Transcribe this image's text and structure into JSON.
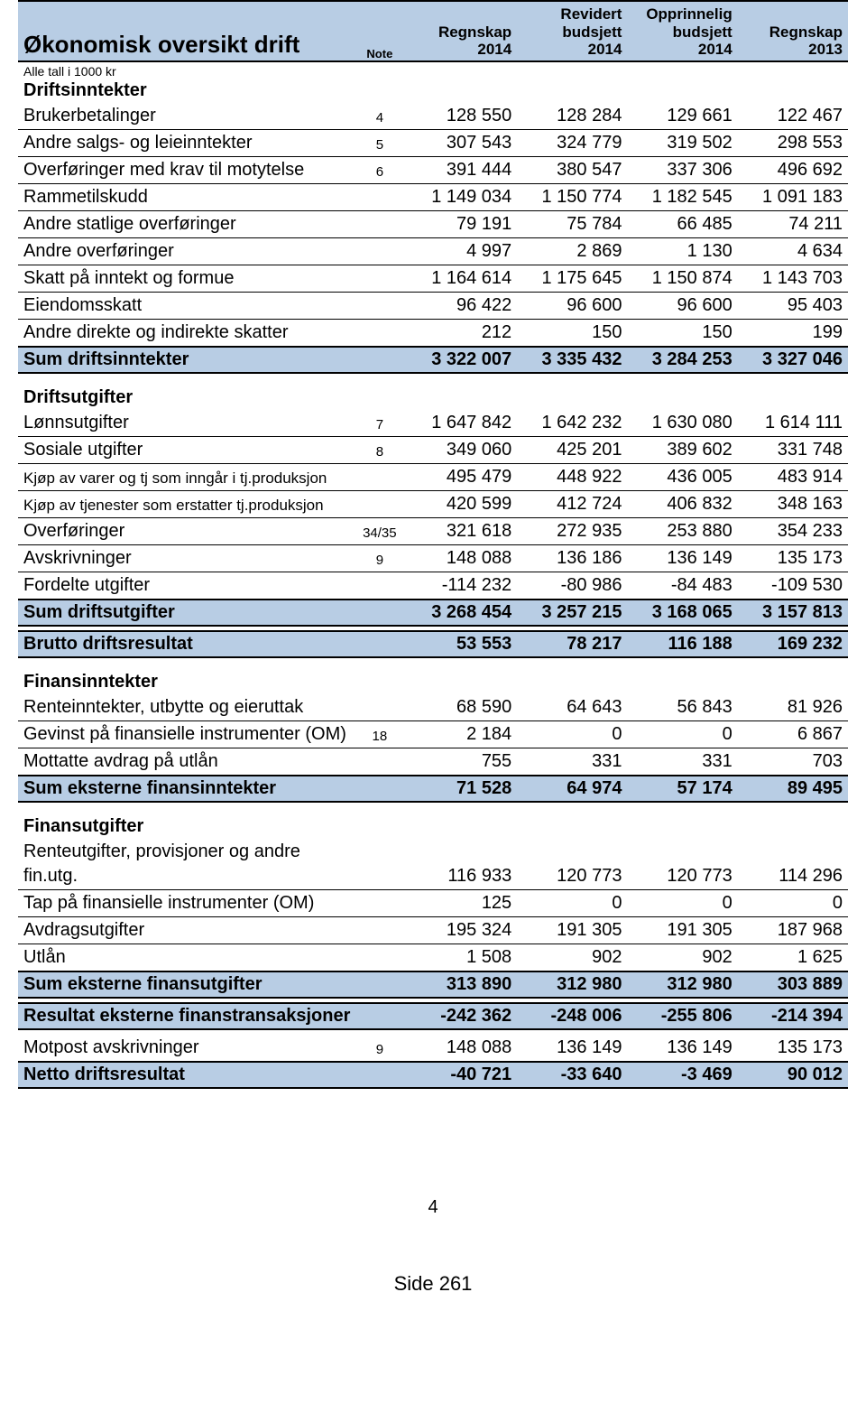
{
  "colors": {
    "header_bg": "#b8cde4",
    "border": "#000000",
    "text": "#000000",
    "page_bg": "#ffffff"
  },
  "header": {
    "title": "Økonomisk oversikt drift",
    "note_label": "Note",
    "columns": [
      {
        "line1": "Regnskap",
        "line2": "2014"
      },
      {
        "line1": "Revidert budsjett",
        "line2": "2014",
        "stacked": [
          "Revidert",
          "budsjett",
          "2014"
        ]
      },
      {
        "line1": "Opprinnelig budsjett",
        "line2": "2014",
        "stacked": [
          "Opprinnelig",
          "budsjett",
          "2014"
        ]
      },
      {
        "line1": "Regnskap",
        "line2": "2013"
      }
    ]
  },
  "subtitle": "Alle tall i 1000 kr",
  "sections": [
    {
      "heading": "Driftsinntekter",
      "rows": [
        {
          "label": "Brukerbetalinger",
          "note": "4",
          "v": [
            "128 550",
            "128 284",
            "129 661",
            "122 467"
          ]
        },
        {
          "label": "Andre salgs- og leieinntekter",
          "note": "5",
          "v": [
            "307 543",
            "324 779",
            "319 502",
            "298 553"
          ]
        },
        {
          "label": "Overføringer med krav til motytelse",
          "note": "6",
          "v": [
            "391 444",
            "380 547",
            "337 306",
            "496 692"
          ]
        },
        {
          "label": "Rammetilskudd",
          "note": "",
          "v": [
            "1 149 034",
            "1 150 774",
            "1 182 545",
            "1 091 183"
          ]
        },
        {
          "label": "Andre statlige overføringer",
          "note": "",
          "v": [
            "79 191",
            "75 784",
            "66 485",
            "74 211"
          ]
        },
        {
          "label": "Andre overføringer",
          "note": "",
          "v": [
            "4 997",
            "2 869",
            "1 130",
            "4 634"
          ]
        },
        {
          "label": "Skatt på inntekt og formue",
          "note": "",
          "v": [
            "1 164 614",
            "1 175 645",
            "1 150 874",
            "1 143 703"
          ]
        },
        {
          "label": "Eiendomsskatt",
          "note": "",
          "v": [
            "96 422",
            "96 600",
            "96 600",
            "95 403"
          ]
        },
        {
          "label": "Andre direkte og indirekte skatter",
          "note": "",
          "v": [
            "212",
            "150",
            "150",
            "199"
          ]
        }
      ],
      "sum": {
        "label": "Sum driftsinntekter",
        "v": [
          "3 322 007",
          "3 335 432",
          "3 284 253",
          "3 327 046"
        ]
      }
    },
    {
      "heading": "Driftsutgifter",
      "rows": [
        {
          "label": "Lønnsutgifter",
          "note": "7",
          "v": [
            "1 647 842",
            "1 642 232",
            "1 630 080",
            "1 614 111"
          ]
        },
        {
          "label": "Sosiale utgifter",
          "note": "8",
          "v": [
            "349 060",
            "425 201",
            "389 602",
            "331 748"
          ]
        },
        {
          "label": "Kjøp av varer og tj som inngår i tj.produksjon",
          "note": "",
          "v": [
            "495 479",
            "448 922",
            "436 005",
            "483 914"
          ],
          "small": true
        },
        {
          "label": "Kjøp av tjenester som erstatter tj.produksjon",
          "note": "",
          "v": [
            "420 599",
            "412 724",
            "406 832",
            "348 163"
          ],
          "small": true
        },
        {
          "label": "Overføringer",
          "note": "34/35",
          "v": [
            "321 618",
            "272 935",
            "253 880",
            "354 233"
          ]
        },
        {
          "label": "Avskrivninger",
          "note": "9",
          "v": [
            "148 088",
            "136 186",
            "136 149",
            "135 173"
          ]
        },
        {
          "label": "Fordelte utgifter",
          "note": "",
          "v": [
            "-114 232",
            "-80 986",
            "-84 483",
            "-109 530"
          ]
        }
      ],
      "sum": {
        "label": "Sum driftsutgifter",
        "v": [
          "3 268 454",
          "3 257 215",
          "3 168 065",
          "3 157 813"
        ]
      }
    }
  ],
  "brutto": {
    "label": "Brutto driftsresultat",
    "v": [
      "53 553",
      "78 217",
      "116 188",
      "169 232"
    ]
  },
  "finans_inn": {
    "heading": "Finansinntekter",
    "rows": [
      {
        "label": "Renteinntekter, utbytte og eieruttak",
        "note": "",
        "v": [
          "68 590",
          "64 643",
          "56 843",
          "81 926"
        ]
      },
      {
        "label": "Gevinst på finansielle instrumenter (OM)",
        "note": "18",
        "v": [
          "2 184",
          "0",
          "0",
          "6 867"
        ]
      },
      {
        "label": "Mottatte avdrag på utlån",
        "note": "",
        "v": [
          "755",
          "331",
          "331",
          "703"
        ]
      }
    ],
    "sum": {
      "label": "Sum eksterne finansinntekter",
      "v": [
        "71 528",
        "64 974",
        "57 174",
        "89 495"
      ]
    }
  },
  "finans_ut": {
    "heading": "Finansutgifter",
    "rows": [
      {
        "label": "Renteutgifter, provisjoner og andre fin.utg.",
        "note": "",
        "v": [
          "116 933",
          "120 773",
          "120 773",
          "114 296"
        ]
      },
      {
        "label": "Tap på finansielle instrumenter (OM)",
        "note": "",
        "v": [
          "125",
          "0",
          "0",
          "0"
        ]
      },
      {
        "label": "Avdragsutgifter",
        "note": "",
        "v": [
          "195 324",
          "191 305",
          "191 305",
          "187 968"
        ]
      },
      {
        "label": "Utlån",
        "note": "",
        "v": [
          "1 508",
          "902",
          "902",
          "1 625"
        ]
      }
    ],
    "sum": {
      "label": "Sum eksterne finansutgifter",
      "v": [
        "313 890",
        "312 980",
        "312 980",
        "303 889"
      ]
    }
  },
  "resultat_eksterne": {
    "label": "Resultat eksterne finanstransaksjoner",
    "v": [
      "-242 362",
      "-248 006",
      "-255 806",
      "-214 394"
    ]
  },
  "motpost": {
    "label": "Motpost avskrivninger",
    "note": "9",
    "v": [
      "148 088",
      "136 149",
      "136 149",
      "135 173"
    ]
  },
  "netto": {
    "label": "Netto driftsresultat",
    "v": [
      "-40 721",
      "-33 640",
      "-3 469",
      "90 012"
    ]
  },
  "page_number": "4",
  "side_label": "Side 261"
}
